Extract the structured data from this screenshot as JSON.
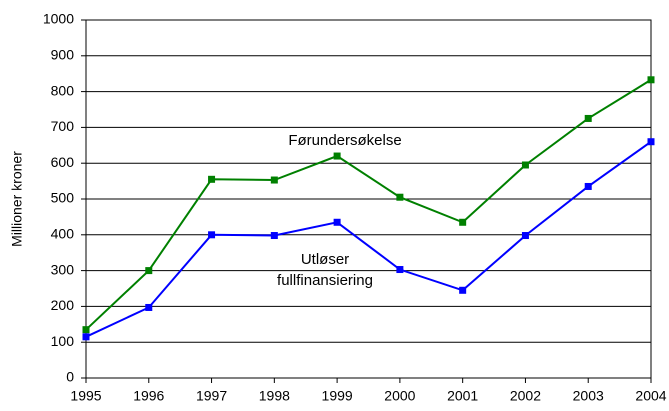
{
  "chart_data": {
    "type": "line",
    "y_label": "Millioner kroner",
    "x": [
      1995,
      1996,
      1997,
      1998,
      1999,
      2000,
      2001,
      2002,
      2003,
      2004
    ],
    "series": [
      {
        "name": "Førundersøkelse",
        "color": "#008000",
        "values": [
          135,
          300,
          555,
          553,
          620,
          505,
          435,
          595,
          725,
          833
        ]
      },
      {
        "name": "Utløser fullfinansiering",
        "color": "#0000ff",
        "values": [
          115,
          197,
          400,
          398,
          435,
          303,
          245,
          398,
          535,
          660
        ]
      }
    ],
    "xlim": [
      1995,
      2004
    ],
    "xticks": [
      1995,
      1996,
      1997,
      1998,
      1999,
      2000,
      2001,
      2002,
      2003,
      2004
    ],
    "ylim": [
      0,
      1000
    ],
    "yticks": [
      0,
      100,
      200,
      300,
      400,
      500,
      600,
      700,
      800,
      900,
      1000
    ],
    "grid": true
  }
}
